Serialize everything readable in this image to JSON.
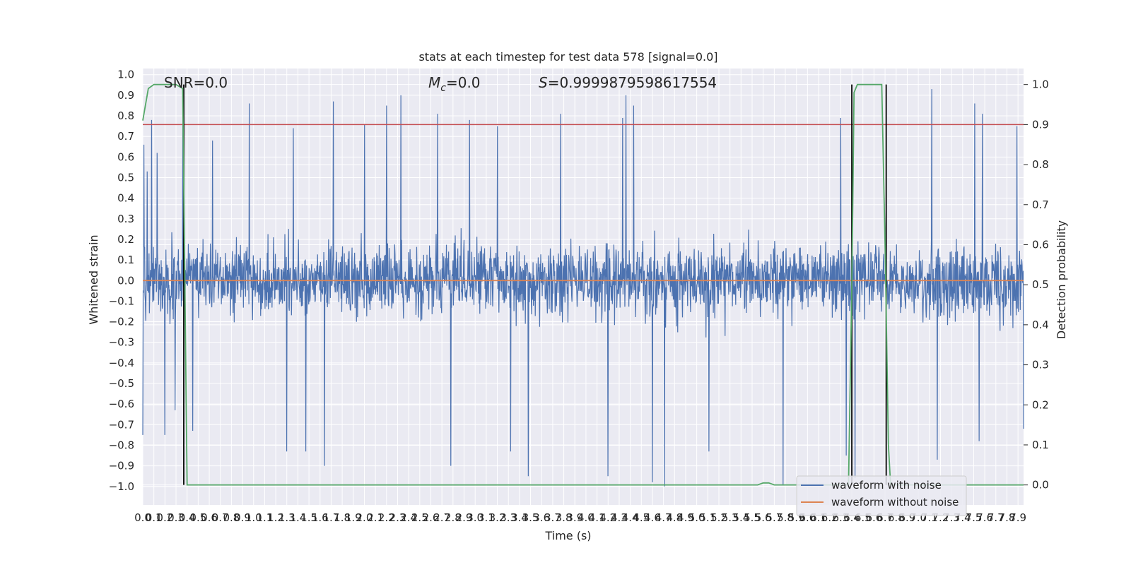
{
  "chart_data": {
    "type": "line",
    "title": "stats at each timestep for test data 578 [signal=0.0]",
    "xlabel": "Time (s)",
    "ylabel": "Whitened strain",
    "y2label": "Detection probability",
    "xlim": [
      0.0,
      7.95
    ],
    "ylim": [
      -1.09,
      1.03
    ],
    "y2lim": [
      -0.05,
      1.04
    ],
    "x_ticks": [
      0.0,
      0.1,
      0.2,
      0.3,
      0.4,
      0.5,
      0.6,
      0.7,
      0.8,
      0.9,
      1.0,
      1.1,
      1.2,
      1.3,
      1.4,
      1.5,
      1.6,
      1.7,
      1.8,
      1.9,
      2.0,
      2.1,
      2.2,
      2.3,
      2.4,
      2.5,
      2.6,
      2.7,
      2.8,
      2.9,
      3.0,
      3.1,
      3.2,
      3.3,
      3.4,
      3.5,
      3.6,
      3.7,
      3.8,
      3.9,
      4.0,
      4.1,
      4.2,
      4.3,
      4.4,
      4.5,
      4.6,
      4.7,
      4.8,
      4.9,
      5.0,
      5.1,
      5.2,
      5.3,
      5.4,
      5.5,
      5.6,
      5.7,
      5.8,
      5.9,
      6.0,
      6.1,
      6.2,
      6.3,
      6.4,
      6.5,
      6.6,
      6.7,
      6.8,
      6.9,
      7.0,
      7.1,
      7.2,
      7.3,
      7.4,
      7.5,
      7.6,
      7.7,
      7.8,
      7.9
    ],
    "y_ticks": [
      1.0,
      0.9,
      0.8,
      0.7,
      0.6,
      0.5,
      0.4,
      0.3,
      0.2,
      0.1,
      0.0,
      -0.1,
      -0.2,
      -0.3,
      -0.4,
      -0.5,
      -0.6,
      -0.7,
      -0.8,
      -0.9,
      -1.0
    ],
    "y_tick_labels": [
      "1.0",
      "0.9",
      "0.8",
      "0.7",
      "0.6",
      "0.5",
      "0.4",
      "0.3",
      "0.2",
      "0.1",
      "0.0",
      "−0.1",
      "−0.2",
      "−0.3",
      "−0.4",
      "−0.5",
      "−0.6",
      "−0.7",
      "−0.8",
      "−0.9",
      "−1.0"
    ],
    "y2_ticks": [
      1.0,
      0.9,
      0.8,
      0.7,
      0.6,
      0.5,
      0.4,
      0.3,
      0.2,
      0.1,
      0.0
    ],
    "y2_tick_labels": [
      "1.0",
      "0.9",
      "0.8",
      "0.7",
      "0.6",
      "0.5",
      "0.4",
      "0.3",
      "0.2",
      "0.1",
      "0.0"
    ],
    "grid": true,
    "legend_position": "bottom-right",
    "series": [
      {
        "name": "waveform with noise",
        "color": "#4c72b0",
        "axis": "left",
        "description_of_values": "dense noise samples",
        "sample_count": 2400,
        "amplitude_range": [
          -1.0,
          0.93
        ],
        "peaks_high": [
          [
            0.01,
            0.66
          ],
          [
            0.04,
            0.53
          ],
          [
            0.08,
            0.78
          ],
          [
            0.13,
            0.62
          ],
          [
            0.36,
            0.78
          ],
          [
            0.63,
            0.68
          ],
          [
            0.96,
            0.86
          ],
          [
            1.36,
            0.74
          ],
          [
            1.72,
            0.87
          ],
          [
            2.0,
            0.76
          ],
          [
            2.2,
            0.85
          ],
          [
            2.33,
            0.9
          ],
          [
            2.66,
            0.81
          ],
          [
            2.95,
            0.78
          ],
          [
            3.2,
            0.75
          ],
          [
            3.77,
            0.81
          ],
          [
            4.33,
            0.79
          ],
          [
            4.36,
            0.9
          ],
          [
            4.43,
            0.85
          ],
          [
            6.3,
            0.79
          ],
          [
            7.12,
            0.93
          ],
          [
            7.51,
            0.86
          ],
          [
            7.58,
            0.81
          ],
          [
            7.89,
            0.75
          ]
        ],
        "peaks_low": [
          [
            0.0,
            -0.75
          ],
          [
            0.2,
            -0.75
          ],
          [
            0.29,
            -0.63
          ],
          [
            0.45,
            -0.73
          ],
          [
            1.3,
            -0.83
          ],
          [
            1.47,
            -0.83
          ],
          [
            1.64,
            -0.9
          ],
          [
            2.78,
            -0.9
          ],
          [
            3.32,
            -0.83
          ],
          [
            3.48,
            -0.95
          ],
          [
            4.2,
            -0.95
          ],
          [
            4.6,
            -0.98
          ],
          [
            4.71,
            -1.0
          ],
          [
            5.11,
            -0.83
          ],
          [
            5.78,
            -0.99
          ],
          [
            6.35,
            -0.85
          ],
          [
            6.43,
            -0.96
          ],
          [
            7.17,
            -0.87
          ],
          [
            7.55,
            -0.78
          ],
          [
            7.95,
            -0.72
          ]
        ]
      },
      {
        "name": "waveform without noise",
        "color": "#dd8452",
        "axis": "left",
        "x": [
          0.0,
          7.95
        ],
        "y": [
          0.0,
          0.0
        ]
      },
      {
        "name": "",
        "color": "#55a868",
        "axis": "right",
        "x": [
          0.0,
          0.05,
          0.1,
          0.15,
          0.2,
          0.25,
          0.3,
          0.36,
          0.38,
          0.4,
          0.42,
          0.45,
          0.5,
          1.0,
          2.0,
          3.0,
          4.0,
          5.0,
          5.55,
          5.6,
          5.65,
          5.7,
          5.75,
          6.0,
          6.37,
          6.4,
          6.42,
          6.45,
          6.5,
          6.6,
          6.67,
          6.7,
          6.73,
          6.75,
          6.8,
          7.0,
          7.95
        ],
        "y": [
          0.91,
          0.99,
          1.0,
          1.0,
          1.0,
          1.0,
          1.0,
          0.99,
          0.5,
          0.0,
          0.0,
          0.0,
          0.0,
          0.0,
          0.0,
          0.0,
          0.0,
          0.0,
          0.0,
          0.005,
          0.005,
          0.0,
          0.0,
          0.0,
          0.0,
          0.5,
          0.98,
          1.0,
          1.0,
          1.0,
          1.0,
          0.6,
          0.1,
          0.0,
          0.0,
          0.0,
          0.0
        ]
      }
    ],
    "hlines": [
      {
        "y2": 0.9,
        "color": "#c44e52"
      }
    ],
    "vlines": [
      {
        "x": 0.37,
        "y2_range": [
          0.0,
          1.0
        ],
        "color": "#000000"
      },
      {
        "x": 6.4,
        "y2_range": [
          0.0,
          1.0
        ],
        "color": "#000000"
      },
      {
        "x": 6.71,
        "y2_range": [
          0.0,
          1.0
        ],
        "color": "#000000"
      }
    ],
    "annotations": [
      {
        "text": "SNR=0.0",
        "x": 0.19,
        "y": 0.95
      },
      {
        "text": "M_c=0.0",
        "x": 2.58,
        "y": 0.95
      },
      {
        "text": "S=0.9999879598617554",
        "x": 3.57,
        "y": 0.95
      }
    ]
  }
}
